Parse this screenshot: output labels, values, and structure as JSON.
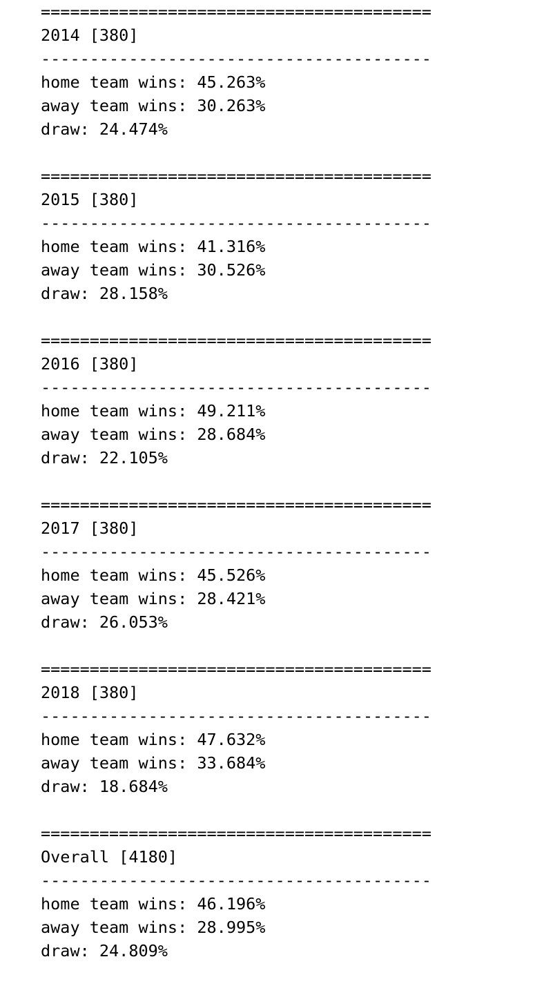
{
  "separator_major": "========================================",
  "separator_minor": "----------------------------------------",
  "blocks": [
    {
      "header": "2014 [380]",
      "home": "home team wins: 45.263%",
      "away": "away team wins: 30.263%",
      "draw": "draw: 24.474%"
    },
    {
      "header": "2015 [380]",
      "home": "home team wins: 41.316%",
      "away": "away team wins: 30.526%",
      "draw": "draw: 28.158%"
    },
    {
      "header": "2016 [380]",
      "home": "home team wins: 49.211%",
      "away": "away team wins: 28.684%",
      "draw": "draw: 22.105%"
    },
    {
      "header": "2017 [380]",
      "home": "home team wins: 45.526%",
      "away": "away team wins: 28.421%",
      "draw": "draw: 26.053%"
    },
    {
      "header": "2018 [380]",
      "home": "home team wins: 47.632%",
      "away": "away team wins: 33.684%",
      "draw": "draw: 18.684%"
    },
    {
      "header": "Overall [4180]",
      "home": "home team wins: 46.196%",
      "away": "away team wins: 28.995%",
      "draw": "draw: 24.809%"
    }
  ]
}
